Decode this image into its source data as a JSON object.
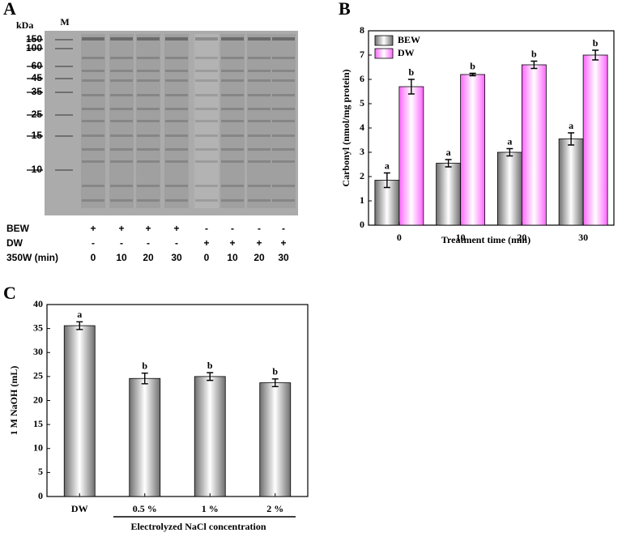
{
  "panel_labels": [
    "A",
    "B",
    "C"
  ],
  "gel": {
    "lane_marker": "M",
    "unit": "kDa",
    "markers": [
      "150",
      "100",
      "60",
      "45",
      "35",
      "25",
      "15",
      "10"
    ],
    "rows": [
      {
        "label": "BEW",
        "cells": [
          "+",
          "+",
          "+",
          "+",
          "-",
          "-",
          "-",
          "-"
        ]
      },
      {
        "label": "DW",
        "cells": [
          "-",
          "-",
          "-",
          "-",
          "+",
          "+",
          "+",
          "+"
        ]
      },
      {
        "label": "350W (min)",
        "cells": [
          "0",
          "10",
          "20",
          "30",
          "0",
          "10",
          "20",
          "30"
        ]
      }
    ]
  },
  "chart_data": [
    {
      "type": "bar",
      "xlabel": "Treatment time (min)",
      "ylabel": "Carbonyl (nmol/mg protein)",
      "categories": [
        "0",
        "10",
        "20",
        "30"
      ],
      "series": [
        {
          "name": "BEW",
          "color": "#6e6e6e",
          "values": [
            1.85,
            2.55,
            3.0,
            3.55
          ],
          "errors": [
            0.3,
            0.15,
            0.15,
            0.25
          ],
          "significance": [
            "a",
            "a",
            "a",
            "a"
          ]
        },
        {
          "name": "DW",
          "color": "#ff66ff",
          "values": [
            5.7,
            6.2,
            6.6,
            7.0
          ],
          "errors": [
            0.3,
            0.05,
            0.15,
            0.2
          ],
          "significance": [
            "b",
            "b",
            "b",
            "b"
          ]
        }
      ],
      "ylim": [
        0,
        8
      ],
      "yticks": [
        0,
        1,
        2,
        3,
        4,
        5,
        6,
        7,
        8
      ],
      "legend": "upper left"
    },
    {
      "type": "bar",
      "xlabel": "Electrolyzed NaCl concentration",
      "ylabel": "1 M NaOH (mL)",
      "categories": [
        "DW",
        "0.5 %",
        "1 %",
        "2 %"
      ],
      "values": [
        35.6,
        24.6,
        25.0,
        23.7
      ],
      "errors": [
        0.8,
        1.1,
        0.8,
        0.8
      ],
      "significance": [
        "a",
        "b",
        "b",
        "b"
      ],
      "color": "#6e6e6e",
      "ylim": [
        0,
        40
      ],
      "yticks": [
        0,
        5,
        10,
        15,
        20,
        25,
        30,
        35,
        40
      ]
    }
  ]
}
